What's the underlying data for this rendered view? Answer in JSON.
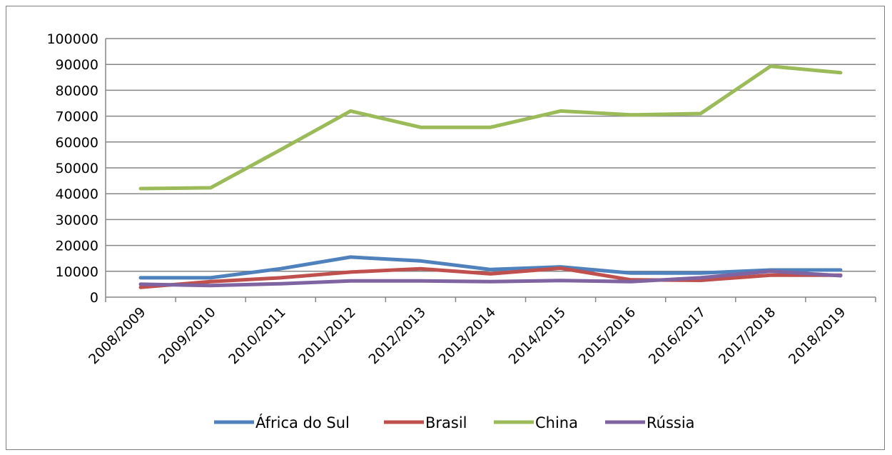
{
  "chart_data": {
    "type": "line",
    "title": "",
    "xlabel": "",
    "ylabel": "",
    "categories": [
      "2008/2009",
      "2009/2010",
      "2010/2011",
      "2011/2012",
      "2012/2013",
      "2013/2014",
      "2014/2015",
      "2015/2016",
      "2016/2017",
      "2017/2018",
      "2018/2019"
    ],
    "ylim": [
      0,
      100000
    ],
    "yticks": [
      "0",
      "10000",
      "20000",
      "30000",
      "40000",
      "50000",
      "60000",
      "70000",
      "80000",
      "90000",
      "100000"
    ],
    "grid": true,
    "legend_position": "bottom",
    "series": [
      {
        "name": "África do Sul",
        "color": "#4f81bd",
        "values": [
          7500,
          7500,
          11000,
          15500,
          14000,
          10700,
          11700,
          9300,
          9300,
          10500,
          10500
        ]
      },
      {
        "name": "Brasil",
        "color": "#c0504d",
        "values": [
          3800,
          6000,
          7500,
          9700,
          11000,
          9000,
          11200,
          6700,
          6500,
          8500,
          8500
        ]
      },
      {
        "name": "China",
        "color": "#9bbb59",
        "values": [
          42000,
          42300,
          57000,
          72000,
          65700,
          65700,
          72000,
          70500,
          71000,
          89300,
          86800
        ]
      },
      {
        "name": "Rússia",
        "color": "#8064a2",
        "values": [
          5000,
          4500,
          5200,
          6300,
          6300,
          6000,
          6400,
          6000,
          7500,
          10000,
          8300
        ]
      }
    ]
  }
}
